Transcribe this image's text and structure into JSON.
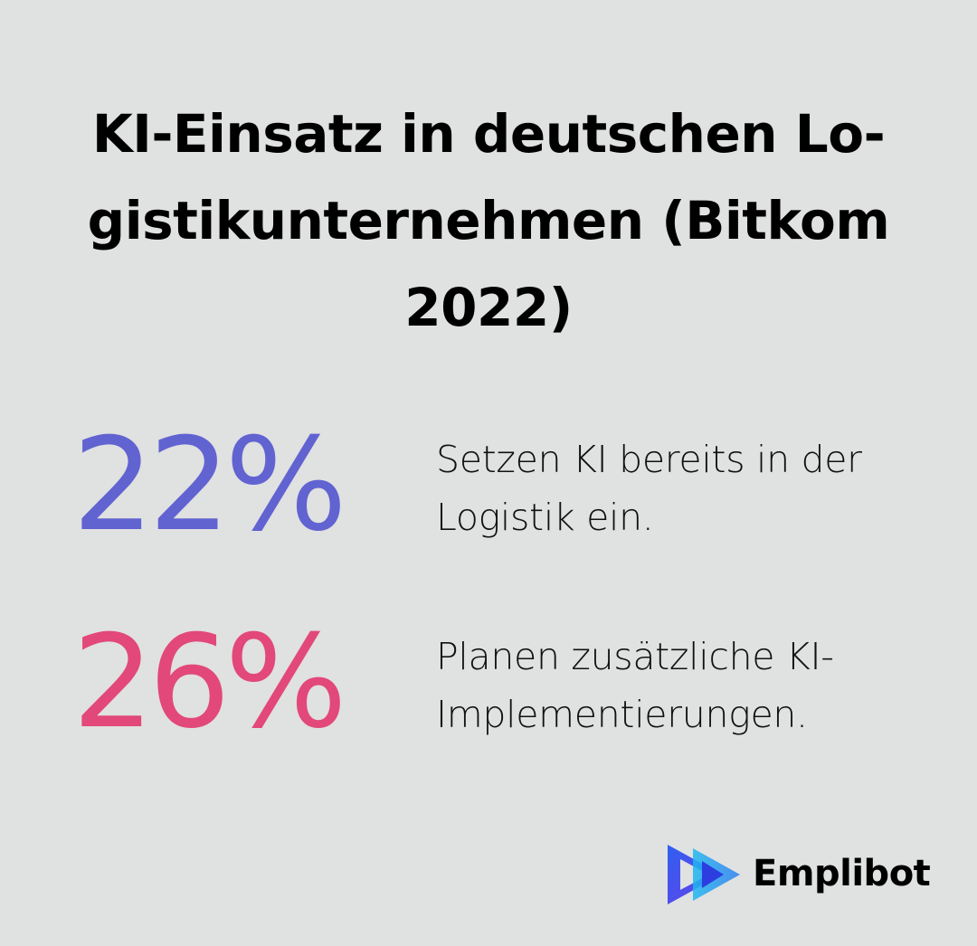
{
  "title": "KI-Einsatz in deutschen Lo-\ngistikunternehmen (Bitkom\n2022)",
  "stats": [
    {
      "value": "22%",
      "description": "Setzen KI bereits in der\nLogistik ein.",
      "color": "#6163d1"
    },
    {
      "value": "26%",
      "description": "Planen zusätzliche KI-\nImplementierungen.",
      "color": "#e2487a"
    }
  ],
  "brand": {
    "name": "Emplibot",
    "logo_icon": "play-arrow-logo-icon",
    "logo_colors": [
      "#2f5ff0",
      "#1fb8f0",
      "#6b3fe8"
    ]
  }
}
